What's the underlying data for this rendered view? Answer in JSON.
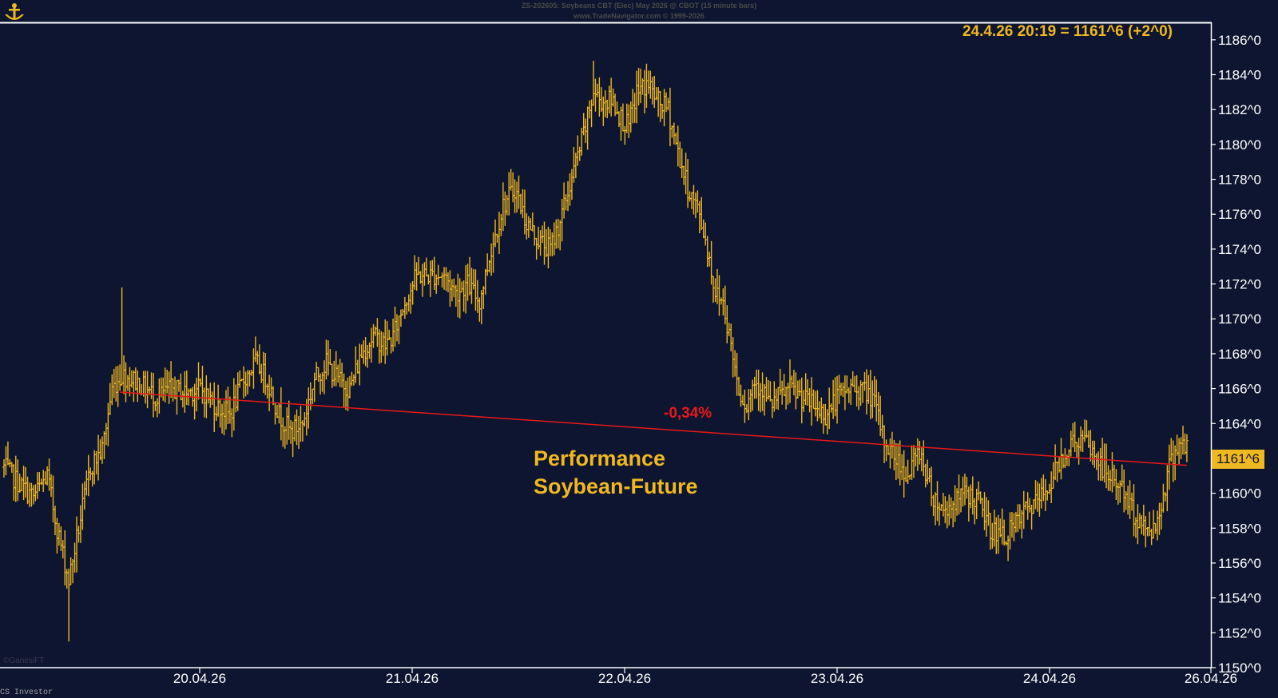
{
  "header": {
    "line1": "ZS-202605:  Soybeans CBT (Elec) May 2026 @ CBOT  (15 minute bars)",
    "line2": "www.TradeNavigator.com © 1999-2026"
  },
  "readout": "24.4.26 20:19 = 1161^6 (+2^0)",
  "price_badge": "1161^6",
  "annotation": {
    "performance_line1": "Performance",
    "performance_line2": "Soybean-Future",
    "percent": "-0,34%"
  },
  "copyright": "©GanesiFT",
  "footer": "CS Investor",
  "colors": {
    "background": "#0d1530",
    "bars": "#f0b820",
    "trendline": "#e81818",
    "axis": "#ffffff"
  },
  "icons": {
    "logo": "anchor-logo-icon"
  },
  "chart_data": {
    "type": "ohlc",
    "interval": "15 minute bars",
    "x_axis": {
      "type": "date",
      "tick_labels": [
        "20.04.26",
        "21.04.26",
        "22.04.26",
        "23.04.26",
        "24.04.26",
        "26.04.26"
      ]
    },
    "y_axis": {
      "range": [
        1150,
        1187
      ],
      "position": "right",
      "tick_labels": [
        "1150^0",
        "1152^0",
        "1154^0",
        "1156^0",
        "1158^0",
        "1160^0",
        "1162^0",
        "1164^0",
        "1166^0",
        "1168^0",
        "1170^0",
        "1172^0",
        "1174^0",
        "1176^0",
        "1178^0",
        "1180^0",
        "1182^0",
        "1184^0",
        "1186^0"
      ]
    },
    "anchors": [
      [
        0,
        1161.5
      ],
      [
        8,
        1160.5
      ],
      [
        15,
        1159.8
      ],
      [
        22,
        1161
      ],
      [
        27,
        1158
      ],
      [
        33,
        1155
      ],
      [
        38,
        1158
      ],
      [
        44,
        1161.5
      ],
      [
        50,
        1162.5
      ],
      [
        55,
        1166
      ],
      [
        60,
        1166.8
      ],
      [
        66,
        1166.5
      ],
      [
        72,
        1166
      ],
      [
        78,
        1165.5
      ],
      [
        85,
        1166
      ],
      [
        92,
        1165.8
      ],
      [
        100,
        1166
      ],
      [
        108,
        1165
      ],
      [
        115,
        1164.5
      ],
      [
        122,
        1166.5
      ],
      [
        128,
        1167.5
      ],
      [
        134,
        1166.5
      ],
      [
        140,
        1164.5
      ],
      [
        146,
        1163.5
      ],
      [
        152,
        1164
      ],
      [
        158,
        1166.5
      ],
      [
        164,
        1167.5
      ],
      [
        170,
        1166.5
      ],
      [
        176,
        1166
      ],
      [
        182,
        1168
      ],
      [
        188,
        1169
      ],
      [
        194,
        1168.5
      ],
      [
        198,
        1169
      ],
      [
        204,
        1171
      ],
      [
        210,
        1172.5
      ],
      [
        218,
        1172.5
      ],
      [
        224,
        1172.5
      ],
      [
        230,
        1171.5
      ],
      [
        236,
        1172
      ],
      [
        242,
        1171
      ],
      [
        248,
        1174
      ],
      [
        254,
        1176.5
      ],
      [
        260,
        1177.5
      ],
      [
        266,
        1175.5
      ],
      [
        272,
        1174.5
      ],
      [
        278,
        1174
      ],
      [
        284,
        1176
      ],
      [
        290,
        1178.5
      ],
      [
        296,
        1181
      ],
      [
        300,
        1183
      ],
      [
        304,
        1182.5
      ],
      [
        310,
        1182.5
      ],
      [
        314,
        1181.5
      ],
      [
        318,
        1181
      ],
      [
        322,
        1183
      ],
      [
        328,
        1183.5
      ],
      [
        332,
        1182.5
      ],
      [
        338,
        1182
      ],
      [
        342,
        1180
      ],
      [
        348,
        1177.5
      ],
      [
        354,
        1176
      ],
      [
        358,
        1174
      ],
      [
        362,
        1171.5
      ],
      [
        366,
        1171
      ],
      [
        370,
        1168.5
      ],
      [
        374,
        1166
      ],
      [
        378,
        1165
      ],
      [
        382,
        1166.5
      ],
      [
        386,
        1166
      ],
      [
        390,
        1165
      ],
      [
        394,
        1165.5
      ],
      [
        400,
        1166
      ],
      [
        406,
        1165.5
      ],
      [
        412,
        1165
      ],
      [
        418,
        1164.5
      ],
      [
        424,
        1165.5
      ],
      [
        430,
        1166
      ],
      [
        436,
        1166
      ],
      [
        442,
        1165.5
      ],
      [
        448,
        1163
      ],
      [
        454,
        1162
      ],
      [
        460,
        1161
      ],
      [
        466,
        1162.5
      ],
      [
        472,
        1160
      ],
      [
        478,
        1159
      ],
      [
        484,
        1159.5
      ],
      [
        490,
        1160
      ],
      [
        496,
        1159.5
      ],
      [
        502,
        1158
      ],
      [
        508,
        1157.5
      ],
      [
        514,
        1158
      ],
      [
        520,
        1159
      ],
      [
        526,
        1159.5
      ],
      [
        532,
        1160.5
      ],
      [
        538,
        1162
      ],
      [
        544,
        1163
      ],
      [
        550,
        1163
      ],
      [
        556,
        1162
      ],
      [
        562,
        1161
      ],
      [
        568,
        1160.5
      ],
      [
        574,
        1159
      ],
      [
        580,
        1158
      ],
      [
        586,
        1158
      ],
      [
        590,
        1160
      ],
      [
        594,
        1162
      ],
      [
        598,
        1163
      ],
      [
        602,
        1162.5
      ]
    ],
    "trendline": {
      "start": [
        59,
        1165.8
      ],
      "end": [
        602,
        1161.6
      ],
      "label": "-0,34%"
    },
    "last": 1161.6
  }
}
